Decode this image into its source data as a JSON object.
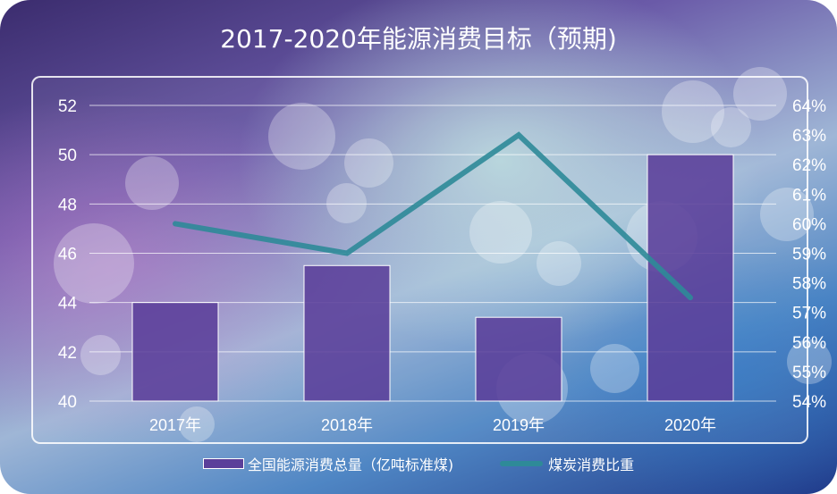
{
  "chart_data": {
    "type": "bar",
    "title": "2017-2020年能源消费目标（预期)",
    "categories": [
      "2017年",
      "2018年",
      "2019年",
      "2020年"
    ],
    "series": [
      {
        "name": "全国能源消费总量（亿吨标准煤)",
        "type": "bar",
        "axis": "left",
        "values": [
          44,
          45.5,
          43.4,
          50
        ]
      },
      {
        "name": "煤炭消费比重",
        "type": "line",
        "axis": "right",
        "values": [
          60,
          59,
          63,
          57.5
        ]
      }
    ],
    "y_left": {
      "min": 40,
      "max": 52,
      "ticks": [
        "40",
        "42",
        "44",
        "46",
        "48",
        "50",
        "52"
      ]
    },
    "y_right": {
      "min": 54,
      "max": 64,
      "ticks": [
        "54%",
        "55%",
        "56%",
        "57%",
        "58%",
        "59%",
        "60%",
        "61%",
        "62%",
        "63%",
        "64%"
      ]
    },
    "grid": true,
    "legend_position": "bottom",
    "colors": {
      "bar": "#5b3f9a",
      "bar_border": "#ffffff",
      "line": "#2e8a98",
      "text": "#ffffff",
      "grid": "#ffffff"
    }
  }
}
